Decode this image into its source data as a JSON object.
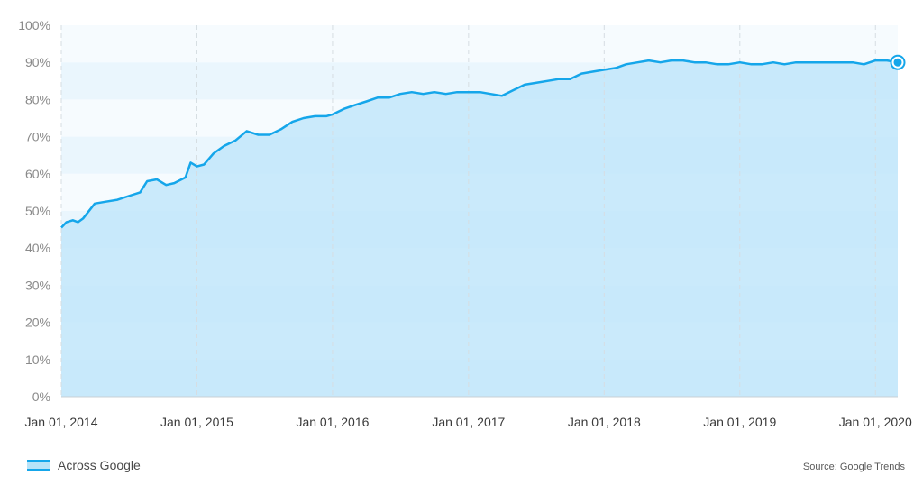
{
  "chart_data": {
    "type": "area",
    "series": [
      {
        "name": "Across Google",
        "color": "#15a6ea",
        "fill": "#bfe6fa",
        "points": [
          [
            "2014-01-01",
            45.5
          ],
          [
            "2014-01-15",
            47
          ],
          [
            "2014-02-01",
            47.5
          ],
          [
            "2014-02-15",
            47
          ],
          [
            "2014-03-01",
            48
          ],
          [
            "2014-04-01",
            52
          ],
          [
            "2014-05-01",
            52.5
          ],
          [
            "2014-06-01",
            53
          ],
          [
            "2014-07-01",
            54
          ],
          [
            "2014-08-01",
            55
          ],
          [
            "2014-08-20",
            58
          ],
          [
            "2014-09-15",
            58.5
          ],
          [
            "2014-10-10",
            57
          ],
          [
            "2014-11-01",
            57.5
          ],
          [
            "2014-12-01",
            59
          ],
          [
            "2014-12-15",
            63
          ],
          [
            "2015-01-01",
            62
          ],
          [
            "2015-01-20",
            62.5
          ],
          [
            "2015-02-15",
            65.5
          ],
          [
            "2015-03-15",
            67.5
          ],
          [
            "2015-04-15",
            69
          ],
          [
            "2015-05-15",
            71.5
          ],
          [
            "2015-06-15",
            70.5
          ],
          [
            "2015-07-15",
            70.5
          ],
          [
            "2015-08-15",
            72
          ],
          [
            "2015-09-15",
            74
          ],
          [
            "2015-10-15",
            75
          ],
          [
            "2015-11-15",
            75.5
          ],
          [
            "2015-12-15",
            75.5
          ],
          [
            "2016-01-01",
            76
          ],
          [
            "2016-02-01",
            77.5
          ],
          [
            "2016-03-01",
            78.5
          ],
          [
            "2016-04-01",
            79.5
          ],
          [
            "2016-05-01",
            80.5
          ],
          [
            "2016-06-01",
            80.5
          ],
          [
            "2016-07-01",
            81.5
          ],
          [
            "2016-08-01",
            82
          ],
          [
            "2016-09-01",
            81.5
          ],
          [
            "2016-10-01",
            82
          ],
          [
            "2016-11-01",
            81.5
          ],
          [
            "2016-12-01",
            82
          ],
          [
            "2017-01-01",
            82
          ],
          [
            "2017-02-01",
            82
          ],
          [
            "2017-03-01",
            81.5
          ],
          [
            "2017-04-01",
            81
          ],
          [
            "2017-05-01",
            82.5
          ],
          [
            "2017-06-01",
            84
          ],
          [
            "2017-07-01",
            84.5
          ],
          [
            "2017-08-01",
            85
          ],
          [
            "2017-09-01",
            85.5
          ],
          [
            "2017-10-01",
            85.5
          ],
          [
            "2017-11-01",
            87
          ],
          [
            "2017-12-01",
            87.5
          ],
          [
            "2018-01-01",
            88
          ],
          [
            "2018-02-01",
            88.5
          ],
          [
            "2018-03-01",
            89.5
          ],
          [
            "2018-04-01",
            90
          ],
          [
            "2018-05-01",
            90.5
          ],
          [
            "2018-06-01",
            90
          ],
          [
            "2018-07-01",
            90.5
          ],
          [
            "2018-08-01",
            90.5
          ],
          [
            "2018-09-01",
            90
          ],
          [
            "2018-10-01",
            90
          ],
          [
            "2018-11-01",
            89.5
          ],
          [
            "2018-12-01",
            89.5
          ],
          [
            "2019-01-01",
            90
          ],
          [
            "2019-02-01",
            89.5
          ],
          [
            "2019-03-01",
            89.5
          ],
          [
            "2019-04-01",
            90
          ],
          [
            "2019-05-01",
            89.5
          ],
          [
            "2019-06-01",
            90
          ],
          [
            "2019-07-01",
            90
          ],
          [
            "2019-08-01",
            90
          ],
          [
            "2019-09-01",
            90
          ],
          [
            "2019-10-01",
            90
          ],
          [
            "2019-11-01",
            90
          ],
          [
            "2019-12-01",
            89.5
          ],
          [
            "2020-01-01",
            90.5
          ],
          [
            "2020-02-01",
            90.5
          ],
          [
            "2020-03-01",
            90
          ]
        ]
      }
    ],
    "xaxis": {
      "ticks": [
        "2014-01-01",
        "2015-01-01",
        "2016-01-01",
        "2017-01-01",
        "2018-01-01",
        "2019-01-01",
        "2020-01-01"
      ],
      "tick_labels": [
        "Jan 01, 2014",
        "Jan 01, 2015",
        "Jan 01, 2016",
        "Jan 01, 2017",
        "Jan 01, 2018",
        "Jan 01, 2019",
        "Jan 01, 2020"
      ],
      "range": [
        "2014-01-01",
        "2020-03-01"
      ]
    },
    "yaxis": {
      "ticks": [
        0,
        10,
        20,
        30,
        40,
        50,
        60,
        70,
        80,
        90,
        100
      ],
      "tick_labels": [
        "0%",
        "10%",
        "20%",
        "30%",
        "40%",
        "50%",
        "60%",
        "70%",
        "80%",
        "90%",
        "100%"
      ],
      "ylim": [
        0,
        100
      ]
    },
    "grid": true,
    "legend": {
      "position": "bottom-left",
      "label": "Across Google"
    },
    "source": "Source: Google Trends"
  }
}
